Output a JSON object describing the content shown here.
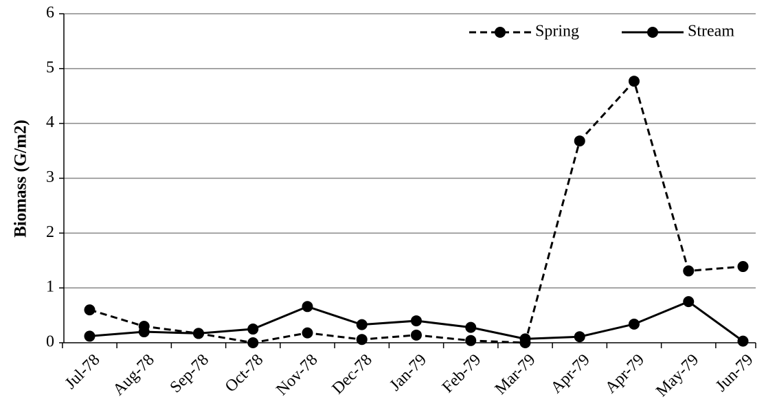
{
  "chart_data": {
    "type": "line",
    "y_label": "Biomass (G/m2)",
    "categories": [
      "Jul-78",
      "Aug-78",
      "Sep-78",
      "Oct-78",
      "Nov-78",
      "Dec-78",
      "Jan-79",
      "Feb-79",
      "Mar-79",
      "Apr-79",
      "Apr-79",
      "May-79",
      "Jun-79"
    ],
    "series": [
      {
        "name": "Spring",
        "color": "#000000",
        "dash": true,
        "values": [
          0.6,
          0.3,
          0.17,
          0.0,
          0.18,
          0.06,
          0.14,
          0.04,
          0.0,
          3.68,
          4.77,
          1.31,
          1.39
        ]
      },
      {
        "name": "Stream",
        "color": "#000000",
        "dash": false,
        "values": [
          0.12,
          0.2,
          0.17,
          0.25,
          0.66,
          0.33,
          0.4,
          0.28,
          0.07,
          0.11,
          0.34,
          0.75,
          0.03
        ]
      }
    ],
    "ylim": [
      0,
      6
    ],
    "yticks": [
      0,
      1,
      2,
      3,
      4,
      5,
      6
    ],
    "grid": true,
    "legend": "top-right"
  }
}
